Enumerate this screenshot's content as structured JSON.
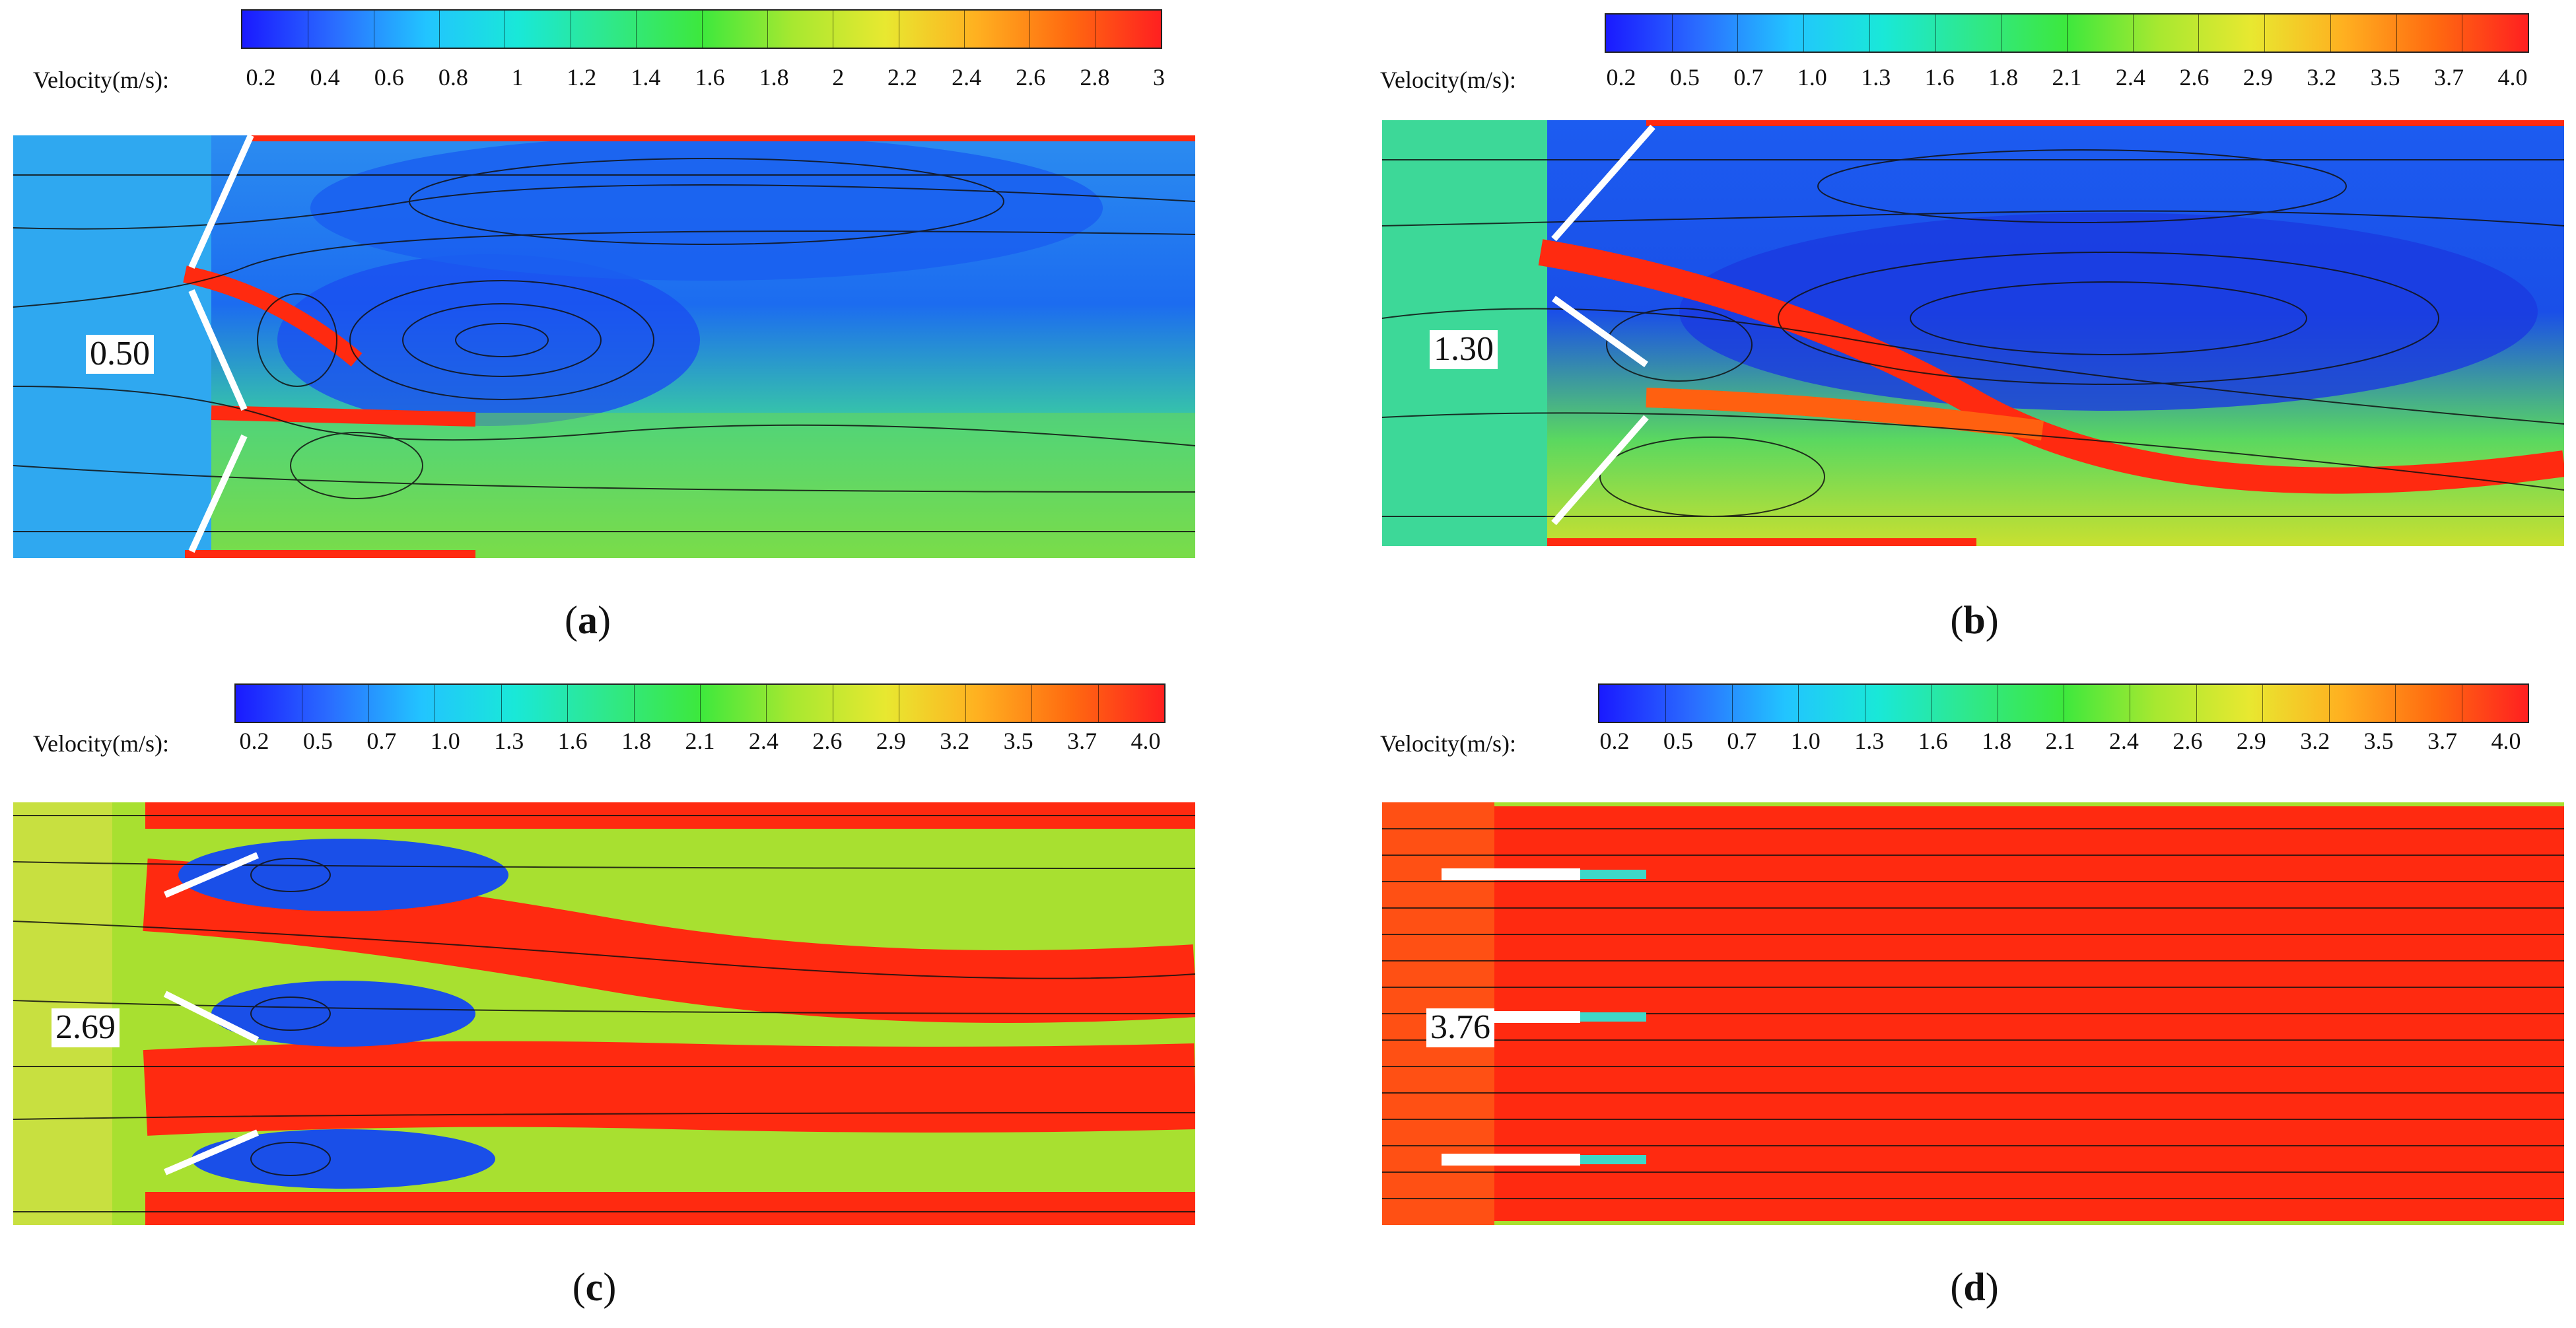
{
  "colorbar_title": "Velocity(m/s):",
  "panels": [
    {
      "id": "a",
      "caption_open": "(",
      "caption_letter": "a",
      "caption_close": ")",
      "value_label": "0.50",
      "ticks": [
        "0.2",
        "0.4",
        "0.6",
        "0.8",
        "1",
        "1.2",
        "1.4",
        "1.6",
        "1.8",
        "2",
        "2.2",
        "2.4",
        "2.6",
        "2.8",
        "3"
      ]
    },
    {
      "id": "b",
      "caption_open": "(",
      "caption_letter": "b",
      "caption_close": ")",
      "value_label": "1.30",
      "ticks": [
        "0.2",
        "0.5",
        "0.7",
        "1.0",
        "1.3",
        "1.6",
        "1.8",
        "2.1",
        "2.4",
        "2.6",
        "2.9",
        "3.2",
        "3.5",
        "3.7",
        "4.0"
      ]
    },
    {
      "id": "c",
      "caption_open": "(",
      "caption_letter": "c",
      "caption_close": ")",
      "value_label": "2.69",
      "ticks": [
        "0.2",
        "0.5",
        "0.7",
        "1.0",
        "1.3",
        "1.6",
        "1.8",
        "2.1",
        "2.4",
        "2.6",
        "2.9",
        "3.2",
        "3.5",
        "3.7",
        "4.0"
      ]
    },
    {
      "id": "d",
      "caption_open": "(",
      "caption_letter": "d",
      "caption_close": ")",
      "value_label": "3.76",
      "ticks": [
        "0.2",
        "0.5",
        "0.7",
        "1.0",
        "1.3",
        "1.6",
        "1.8",
        "2.1",
        "2.4",
        "2.6",
        "2.9",
        "3.2",
        "3.5",
        "3.7",
        "4.0"
      ]
    }
  ],
  "colormap": [
    "#1a1aff",
    "#2a6cff",
    "#22c4ff",
    "#19e8d8",
    "#2fe88a",
    "#3de83d",
    "#a8e830",
    "#e8e830",
    "#ffb020",
    "#ff6a10",
    "#ff2020"
  ]
}
